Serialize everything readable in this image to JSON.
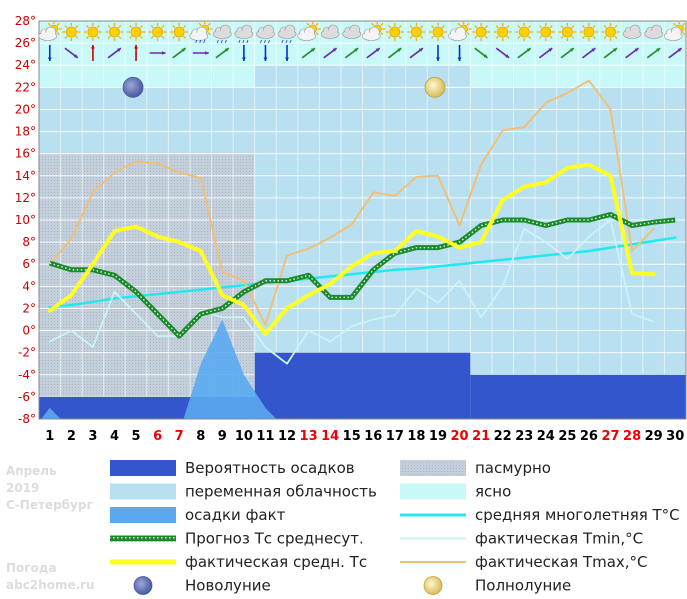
{
  "side_info": {
    "month": "Апрель",
    "year": "2019",
    "city": "С-Петербург",
    "source_line1": "Погода",
    "source_line2": "abc2home.ru"
  },
  "chart_data": {
    "type": "line",
    "ylim": [
      -8,
      28
    ],
    "y_ticks": [
      "28°",
      "26°",
      "24°",
      "22°",
      "20°",
      "18°",
      "16°",
      "14°",
      "12°",
      "10°",
      "8°",
      "6°",
      "4°",
      "2°",
      "0°",
      "-2°",
      "-4°",
      "-6°",
      "-8°"
    ],
    "categories": [
      "1",
      "2",
      "3",
      "4",
      "5",
      "6",
      "7",
      "8",
      "9",
      "10",
      "11",
      "12",
      "13",
      "14",
      "15",
      "16",
      "17",
      "18",
      "19",
      "20",
      "21",
      "22",
      "23",
      "24",
      "25",
      "26",
      "27",
      "28",
      "29",
      "30"
    ],
    "weekend_days": [
      "6",
      "7",
      "13",
      "14",
      "20",
      "21",
      "27",
      "28"
    ],
    "colors": {
      "weekday": "#000000",
      "weekend": "#ee0000",
      "precip_prob": "#3456cc",
      "overcast": "#b8c4d4",
      "variable": "#b8e0f0",
      "clear": "#c8f8f8",
      "precip_fact": "#5aa8f0",
      "forecast_avg": "#1a8a2a",
      "actual_avg": "#ffff22",
      "norm_avg": "#22e8f0",
      "tmin": "#c8f4f8",
      "tmax": "#f0c078"
    },
    "sky_blocks": [
      {
        "from_day": 1,
        "to_day": 10,
        "condition": "overcast"
      },
      {
        "from_day": 11,
        "to_day": 20,
        "condition": "variable"
      },
      {
        "from_day": 21,
        "to_day": 30,
        "condition": "variable"
      }
    ],
    "sky_top": [
      {
        "from_day": 1,
        "to_day": 10,
        "value": 16
      },
      {
        "from_day": 11,
        "to_day": 20,
        "value": 24
      },
      {
        "from_day": 21,
        "to_day": 30,
        "value": 12
      }
    ],
    "clear_band": [
      {
        "from_day": 1,
        "to_day": 10,
        "from": 22,
        "to": 28
      },
      {
        "from_day": 11,
        "to_day": 20,
        "from": 24,
        "to": 28
      },
      {
        "from_day": 21,
        "to_day": 30,
        "from": 22,
        "to": 28
      }
    ],
    "precip_probability": [
      {
        "from_day": 1,
        "to_day": 10,
        "value": -6
      },
      {
        "from_day": 11,
        "to_day": 20,
        "value": -2
      },
      {
        "from_day": 21,
        "to_day": 30,
        "value": -4
      }
    ],
    "precip_actual": [
      {
        "x": 0.6,
        "y": -8
      },
      {
        "x": 1,
        "y": -7
      },
      {
        "x": 1.5,
        "y": -8
      },
      {
        "x": 7.2,
        "y": -8
      },
      {
        "x": 8,
        "y": -3
      },
      {
        "x": 9,
        "y": 1
      },
      {
        "x": 10,
        "y": -4
      },
      {
        "x": 11,
        "y": -7
      },
      {
        "x": 11.5,
        "y": -8
      }
    ],
    "series": [
      {
        "key": "norm_avg",
        "values": [
          2.1,
          2.3,
          2.6,
          2.9,
          3.1,
          3.3,
          3.5,
          3.7,
          3.9,
          4.1,
          4.3,
          4.5,
          4.7,
          4.9,
          5.1,
          5.3,
          5.5,
          5.6,
          5.8,
          6.0,
          6.2,
          6.4,
          6.6,
          6.8,
          7.0,
          7.2,
          7.5,
          7.8,
          8.1,
          8.4
        ]
      },
      {
        "key": "forecast_avg",
        "values": [
          6.1,
          5.5,
          5.5,
          5.0,
          3.5,
          1.5,
          -0.5,
          1.5,
          2.0,
          3.5,
          4.5,
          4.5,
          5.0,
          3.0,
          3.0,
          5.5,
          7.0,
          7.5,
          7.5,
          8.0,
          9.5,
          10.0,
          10.0,
          9.5,
          10.0,
          10.0,
          10.5,
          9.5,
          9.8,
          10.0
        ]
      },
      {
        "key": "actual_avg",
        "values": [
          1.8,
          3.2,
          6.0,
          9.0,
          9.4,
          8.5,
          8.0,
          7.2,
          3.2,
          2.3,
          -0.3,
          2.0,
          3.2,
          4.2,
          5.8,
          7.0,
          7.2,
          9.0,
          8.5,
          7.5,
          8.0,
          11.8,
          13.0,
          13.4,
          14.7,
          15.0,
          14.0,
          5.2,
          5.1,
          null
        ]
      },
      {
        "key": "tmin",
        "values": [
          -1.0,
          0.0,
          -1.5,
          3.5,
          1.5,
          -0.5,
          -0.5,
          1.8,
          1.2,
          1.2,
          -1.5,
          -3.0,
          0.0,
          -1.0,
          0.4,
          1.0,
          1.4,
          3.8,
          2.5,
          4.5,
          1.2,
          4.0,
          9.2,
          8.0,
          6.5,
          8.5,
          10.0,
          1.5,
          0.8,
          null
        ]
      },
      {
        "key": "tmax",
        "values": [
          6.0,
          8.3,
          12.5,
          14.3,
          15.3,
          15.1,
          14.3,
          13.8,
          5.3,
          4.5,
          0.5,
          6.8,
          7.4,
          8.4,
          9.6,
          12.5,
          12.2,
          13.9,
          14.0,
          9.5,
          15.0,
          18.1,
          18.4,
          20.6,
          21.5,
          22.6,
          20.0,
          7.2,
          9.2,
          null
        ]
      }
    ],
    "weather_icons": [
      "partly-cloudy",
      "sun",
      "sun",
      "sun",
      "sun",
      "sun",
      "sun",
      "partly-cloudy-rain",
      "cloud-rain",
      "cloud-rain",
      "cloud-rain",
      "cloud-rain",
      "partly-cloudy",
      "cloud",
      "cloud",
      "partly-cloudy",
      "sun",
      "sun",
      "sun",
      "partly-cloudy",
      "sun",
      "sun",
      "sun",
      "sun",
      "sun",
      "sun",
      "sun",
      "cloud",
      "cloud",
      "partly-cloudy"
    ],
    "wind_directions": [
      "down",
      "down-right",
      "up",
      "up-right",
      "up",
      "right",
      "up-right",
      "right",
      "up-right",
      "down",
      "down",
      "down",
      "up-right",
      "up-right",
      "up-right",
      "up-right",
      "up-right",
      "up-right",
      "down",
      "down",
      "down-right",
      "down-right",
      "up-right",
      "up-right",
      "up-right",
      "up-right",
      "up-right",
      "up-right",
      "up-right",
      "up-right"
    ],
    "moon_phases": [
      {
        "day": 5,
        "phase": "new"
      },
      {
        "day": 19,
        "phase": "full"
      }
    ],
    "legend": [
      {
        "key": "precip_prob",
        "label": "Вероятность осадков",
        "swatch": "block"
      },
      {
        "key": "overcast",
        "label": "пасмурно",
        "swatch": "block"
      },
      {
        "key": "variable",
        "label": "переменная облачность",
        "swatch": "block"
      },
      {
        "key": "clear",
        "label": "ясно",
        "swatch": "block"
      },
      {
        "key": "precip_fact",
        "label": "осадки факт",
        "swatch": "block"
      },
      {
        "key": "norm_avg",
        "label": "средняя многолетняя T°C",
        "swatch": "line"
      },
      {
        "key": "forecast_avg",
        "label": "Прогноз Тс среднесут.",
        "swatch": "dotted"
      },
      {
        "key": "tmin",
        "label": "фактическая Tmin,°C",
        "swatch": "line"
      },
      {
        "key": "actual_avg",
        "label": "фактическая средн. Тс",
        "swatch": "thick"
      },
      {
        "key": "tmax",
        "label": "фактическая Tmax,°C",
        "swatch": "line"
      },
      {
        "key": "new_moon",
        "label": "Новолуние",
        "swatch": "moon-new"
      },
      {
        "key": "full_moon",
        "label": "Полнолуние",
        "swatch": "moon-full"
      }
    ]
  }
}
